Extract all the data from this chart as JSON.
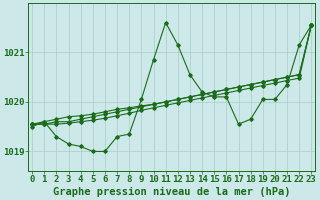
{
  "title": "Graphe pression niveau de la mer (hPa)",
  "bg_color": "#cce8e8",
  "grid_color": "#aacccc",
  "line_color": "#1a6b1a",
  "x_min": 0,
  "x_max": 23,
  "y_min": 1018.6,
  "y_max": 1022.0,
  "yticks": [
    1019,
    1020,
    1021
  ],
  "xticks": [
    0,
    1,
    2,
    3,
    4,
    5,
    6,
    7,
    8,
    9,
    10,
    11,
    12,
    13,
    14,
    15,
    16,
    17,
    18,
    19,
    20,
    21,
    22,
    23
  ],
  "series1": [
    1019.5,
    1019.6,
    1019.3,
    1019.15,
    1019.1,
    1019.0,
    1019.0,
    1019.3,
    1019.35,
    1020.05,
    1020.85,
    1021.6,
    1021.15,
    1020.55,
    1020.2,
    1020.1,
    1020.1,
    1019.55,
    1019.65,
    1020.05,
    1020.05,
    1020.35,
    1021.15,
    1021.55
  ],
  "series2": [
    1019.55,
    1019.55,
    1019.6,
    1019.6,
    1019.65,
    1019.7,
    1019.75,
    1019.8,
    1019.85,
    1019.9,
    1019.95,
    1020.0,
    1020.05,
    1020.1,
    1020.15,
    1020.2,
    1020.25,
    1020.3,
    1020.35,
    1020.4,
    1020.45,
    1020.5,
    1020.55,
    1021.55
  ],
  "series3": [
    1019.55,
    1019.6,
    1019.65,
    1019.7,
    1019.72,
    1019.75,
    1019.8,
    1019.85,
    1019.88,
    1019.92,
    1019.95,
    1020.0,
    1020.05,
    1020.1,
    1020.15,
    1020.2,
    1020.25,
    1020.3,
    1020.35,
    1020.4,
    1020.45,
    1020.5,
    1020.55,
    1021.55
  ],
  "series4": [
    1019.55,
    1019.55,
    1019.55,
    1019.57,
    1019.6,
    1019.63,
    1019.67,
    1019.72,
    1019.77,
    1019.83,
    1019.88,
    1019.93,
    1019.98,
    1020.03,
    1020.08,
    1020.13,
    1020.18,
    1020.23,
    1020.28,
    1020.33,
    1020.38,
    1020.43,
    1020.48,
    1021.55
  ],
  "xlabel_fontsize": 6.5,
  "ylabel_fontsize": 6.5,
  "title_fontsize": 7.5
}
